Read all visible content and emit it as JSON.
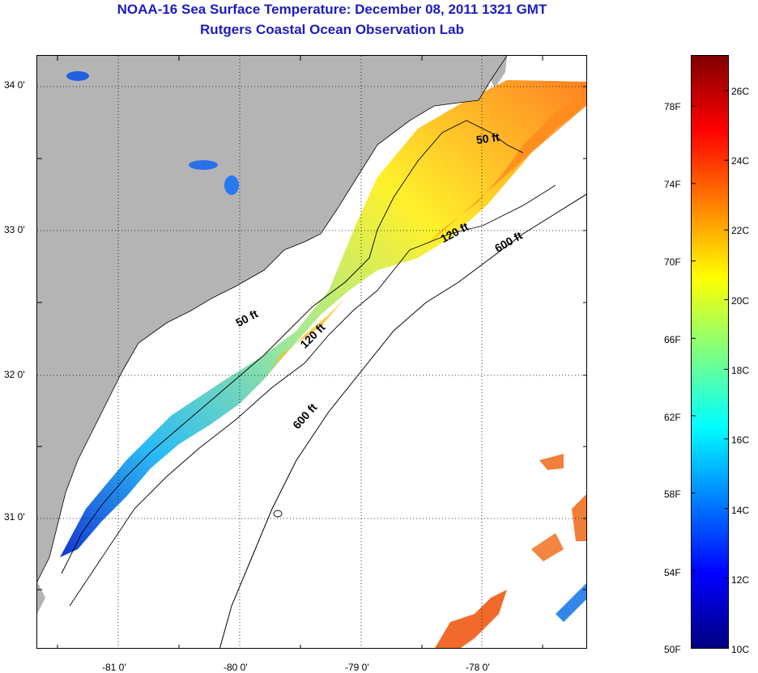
{
  "title": {
    "line1": "NOAA-16 Sea Surface Temperature:  December 08, 2011 1321 GMT",
    "line2": "Rutgers Coastal Ocean Observation Lab"
  },
  "map": {
    "latitude_labels": [
      "34 0'",
      "33 0'",
      "32 0'",
      "31 0'"
    ],
    "longitude_labels": [
      "-81 0'",
      "-80 0'",
      "-79 0'",
      "-78 0'"
    ],
    "depth_contour_labels": [
      {
        "id": "ne-50",
        "text": "50 ft"
      },
      {
        "id": "ne-120",
        "text": "120 ft"
      },
      {
        "id": "ne-600",
        "text": "600 ft"
      },
      {
        "id": "mid-50",
        "text": "50 ft"
      },
      {
        "id": "mid-120",
        "text": "120 ft"
      },
      {
        "id": "sw-600",
        "text": "600 ft"
      }
    ],
    "colors": {
      "land": "#b4b4b4",
      "no_data": "#ffffff",
      "contour": "#000000",
      "grid": "#000000"
    }
  },
  "colorbar": {
    "fahrenheit_labels": [
      "78F",
      "74F",
      "70F",
      "66F",
      "62F",
      "58F",
      "54F",
      "50F"
    ],
    "celsius_labels": [
      "26C",
      "24C",
      "22C",
      "20C",
      "18C",
      "16C",
      "14C",
      "12C",
      "10C"
    ],
    "min_c": 10,
    "max_c": 27,
    "colormap": [
      "#000080",
      "#0000ff",
      "#0080ff",
      "#00ffff",
      "#80ff80",
      "#ffff00",
      "#ff8000",
      "#ff0000",
      "#800000"
    ]
  }
}
